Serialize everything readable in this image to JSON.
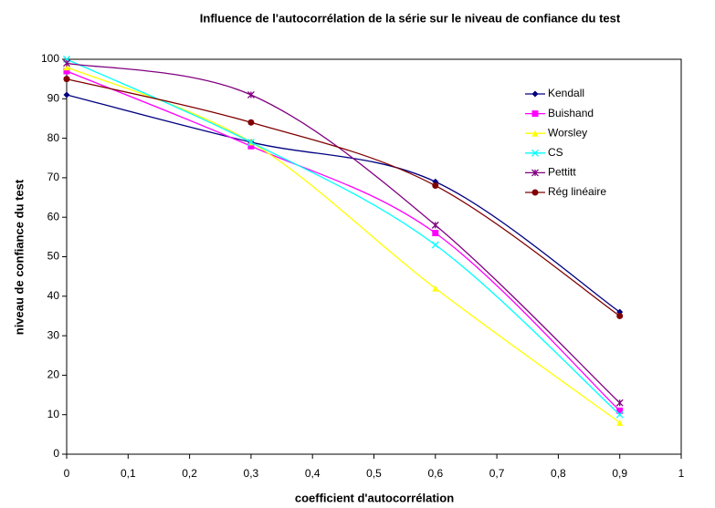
{
  "chart_data": {
    "type": "line",
    "title": "Influence de l'autocorrélation de la série sur le niveau de confiance du test",
    "xlabel": "coefficient d'autocorrélation",
    "ylabel": "niveau de confiance du test",
    "x": [
      0,
      0.3,
      0.6,
      0.9
    ],
    "smooth": true,
    "series": [
      {
        "name": "Kendall",
        "color": "#000080",
        "marker": "diamond",
        "values": [
          91,
          79,
          69,
          36
        ]
      },
      {
        "name": "Buishand",
        "color": "#ff00ff",
        "marker": "square",
        "values": [
          97,
          78,
          56,
          11
        ]
      },
      {
        "name": "Worsley",
        "color": "#ffff00",
        "marker": "triangle",
        "values": [
          98,
          79,
          42,
          8
        ]
      },
      {
        "name": "CS",
        "color": "#00ffff",
        "marker": "x",
        "values": [
          100,
          79,
          53,
          10
        ]
      },
      {
        "name": "Pettitt",
        "color": "#800080",
        "marker": "star",
        "values": [
          99,
          91,
          58,
          13
        ]
      },
      {
        "name": "Rég linéaire",
        "color": "#800000",
        "marker": "circle",
        "values": [
          95,
          84,
          68,
          35
        ]
      }
    ],
    "xlim": [
      0,
      1
    ],
    "xticks": [
      0,
      {
        "value": 0.1,
        "label": "0,1"
      },
      {
        "value": 0.2,
        "label": "0,2"
      },
      {
        "value": 0.3,
        "label": "0,3"
      },
      {
        "value": 0.4,
        "label": "0,4"
      },
      {
        "value": 0.5,
        "label": "0,5"
      },
      {
        "value": 0.6,
        "label": "0,6"
      },
      {
        "value": 0.7,
        "label": "0,7"
      },
      {
        "value": 0.8,
        "label": "0,8"
      },
      {
        "value": 0.9,
        "label": "0,9"
      },
      1
    ],
    "ylim": [
      0,
      100
    ],
    "yticks": [
      0,
      10,
      20,
      30,
      40,
      50,
      60,
      70,
      80,
      90,
      100
    ],
    "grid": false,
    "legend": "upper right"
  }
}
